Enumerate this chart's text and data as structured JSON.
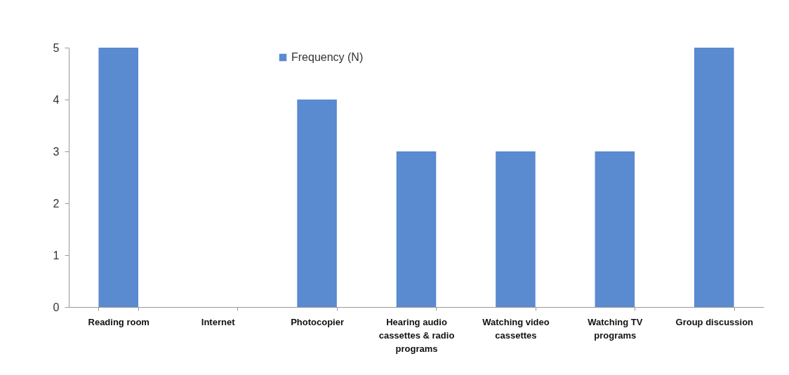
{
  "chart_data": {
    "type": "bar",
    "categories": [
      "Reading room",
      "Internet",
      "Photocopier",
      "Hearing audio cassettes & radio programs",
      "Watching video cassettes",
      "Watching TV programs",
      "Group discussion"
    ],
    "series": [
      {
        "name": "Frequency (N)",
        "color": "#5a8ad0",
        "values": [
          5,
          0,
          4,
          3,
          3,
          3,
          5
        ]
      }
    ],
    "ylim": [
      0,
      5
    ],
    "yticks": [
      0,
      1,
      2,
      3,
      4,
      5
    ],
    "legend": "top"
  }
}
